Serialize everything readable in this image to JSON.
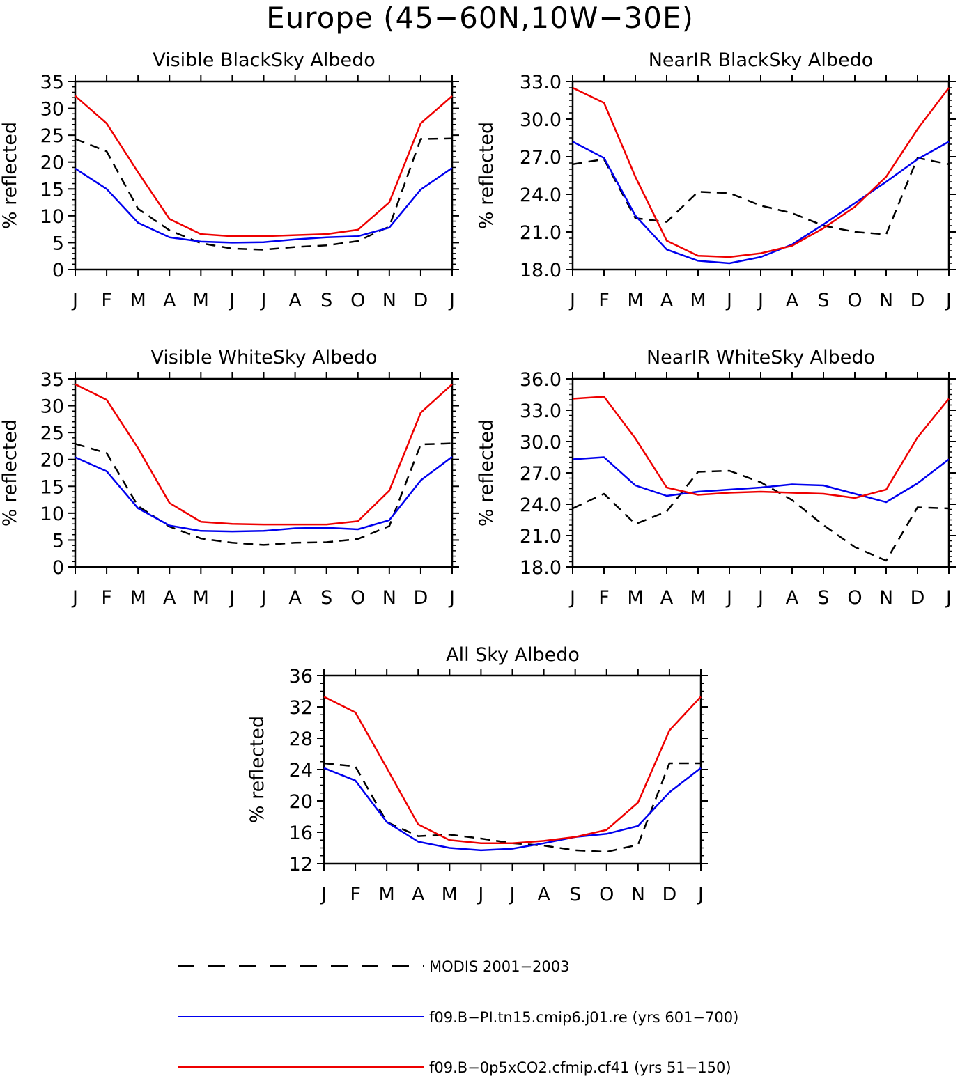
{
  "figure": {
    "title": "Europe (45−60N,10W−30E)",
    "colors": {
      "modis": "#000000",
      "pi": "#0000ee",
      "co2": "#ee0000"
    }
  },
  "legend": [
    {
      "key": "modis",
      "label": "MODIS 2001−2003",
      "style": "dashed"
    },
    {
      "key": "pi",
      "label": "f09.B−PI.tn15.cmip6.j01.re (yrs 601−700)",
      "style": "solid"
    },
    {
      "key": "co2",
      "label": "f09.B−0p5xCO2.cfmip.cf41 (yrs 51−150)",
      "style": "solid"
    }
  ],
  "chart_data": [
    {
      "type": "line",
      "title": "Visible BlackSky Albedo",
      "ylabel": "% reflected",
      "categories": [
        "J",
        "F",
        "M",
        "A",
        "M",
        "J",
        "J",
        "A",
        "S",
        "O",
        "N",
        "D",
        "J"
      ],
      "ylim": [
        0,
        35
      ],
      "yticks": [
        "0",
        "5",
        "10",
        "15",
        "20",
        "25",
        "30",
        "35"
      ],
      "series": [
        {
          "key": "modis",
          "values": [
            24.3,
            22.0,
            11.3,
            7.3,
            4.9,
            3.9,
            3.7,
            4.2,
            4.5,
            5.3,
            8.0,
            24.3,
            24.4
          ]
        },
        {
          "key": "pi",
          "values": [
            18.8,
            15.0,
            8.7,
            6.0,
            5.2,
            5.0,
            5.1,
            5.6,
            6.0,
            6.2,
            7.8,
            14.9,
            18.9
          ]
        },
        {
          "key": "co2",
          "values": [
            32.3,
            27.2,
            18.1,
            9.4,
            6.6,
            6.2,
            6.2,
            6.4,
            6.6,
            7.4,
            12.5,
            27.2,
            32.3
          ]
        }
      ]
    },
    {
      "type": "line",
      "title": "NearIR BlackSky Albedo",
      "ylabel": "% reflected",
      "categories": [
        "J",
        "F",
        "M",
        "A",
        "M",
        "J",
        "J",
        "A",
        "S",
        "O",
        "N",
        "D",
        "J"
      ],
      "ylim": [
        18,
        33
      ],
      "yticks": [
        "18.0",
        "21.0",
        "24.0",
        "27.0",
        "30.0",
        "33.0"
      ],
      "series": [
        {
          "key": "modis",
          "values": [
            26.4,
            26.8,
            22.1,
            21.8,
            24.2,
            24.1,
            23.1,
            22.5,
            21.5,
            21.0,
            20.8,
            26.9,
            26.4
          ]
        },
        {
          "key": "pi",
          "values": [
            28.2,
            26.9,
            22.3,
            19.6,
            18.7,
            18.5,
            19.0,
            20.0,
            21.6,
            23.3,
            25.0,
            26.8,
            28.2
          ]
        },
        {
          "key": "co2",
          "values": [
            32.5,
            31.3,
            25.4,
            20.3,
            19.1,
            19.0,
            19.3,
            19.9,
            21.3,
            23.0,
            25.4,
            29.2,
            32.5
          ]
        }
      ]
    },
    {
      "type": "line",
      "title": "Visible WhiteSky Albedo",
      "ylabel": "% reflected",
      "categories": [
        "J",
        "F",
        "M",
        "A",
        "M",
        "J",
        "J",
        "A",
        "S",
        "O",
        "N",
        "D",
        "J"
      ],
      "ylim": [
        0,
        35
      ],
      "yticks": [
        "0",
        "5",
        "10",
        "15",
        "20",
        "25",
        "30",
        "35"
      ],
      "series": [
        {
          "key": "modis",
          "values": [
            22.9,
            21.2,
            11.3,
            7.5,
            5.3,
            4.5,
            4.1,
            4.5,
            4.6,
            5.2,
            7.6,
            22.8,
            23.0
          ]
        },
        {
          "key": "pi",
          "values": [
            20.4,
            17.8,
            10.9,
            7.7,
            6.7,
            6.6,
            6.7,
            7.2,
            7.3,
            7.0,
            8.7,
            16.1,
            20.5
          ]
        },
        {
          "key": "co2",
          "values": [
            34.0,
            31.1,
            22.1,
            11.9,
            8.4,
            8.0,
            7.9,
            7.9,
            7.9,
            8.5,
            14.2,
            28.7,
            34.0
          ]
        }
      ]
    },
    {
      "type": "line",
      "title": "NearIR WhiteSky Albedo",
      "ylabel": "% reflected",
      "categories": [
        "J",
        "F",
        "M",
        "A",
        "M",
        "J",
        "J",
        "A",
        "S",
        "O",
        "N",
        "D",
        "J"
      ],
      "ylim": [
        18,
        36
      ],
      "yticks": [
        "18.0",
        "21.0",
        "24.0",
        "27.0",
        "30.0",
        "33.0",
        "36.0"
      ],
      "series": [
        {
          "key": "modis",
          "values": [
            23.6,
            25.0,
            22.1,
            23.3,
            27.1,
            27.2,
            26.1,
            24.4,
            22.0,
            19.9,
            18.6,
            23.7,
            23.6
          ]
        },
        {
          "key": "pi",
          "values": [
            28.3,
            28.5,
            25.8,
            24.8,
            25.2,
            25.4,
            25.6,
            25.9,
            25.8,
            25.0,
            24.2,
            26.0,
            28.3
          ]
        },
        {
          "key": "co2",
          "values": [
            34.1,
            34.3,
            30.3,
            25.6,
            24.9,
            25.1,
            25.2,
            25.1,
            25.0,
            24.6,
            25.4,
            30.4,
            34.1
          ]
        }
      ]
    },
    {
      "type": "line",
      "title": "All Sky Albedo",
      "ylabel": "% reflected",
      "categories": [
        "J",
        "F",
        "M",
        "A",
        "M",
        "J",
        "J",
        "A",
        "S",
        "O",
        "N",
        "D",
        "J"
      ],
      "ylim": [
        12,
        36
      ],
      "yticks": [
        "12",
        "16",
        "20",
        "24",
        "28",
        "32",
        "36"
      ],
      "series": [
        {
          "key": "modis",
          "values": [
            24.8,
            24.4,
            17.3,
            15.5,
            15.7,
            15.2,
            14.6,
            14.3,
            13.7,
            13.5,
            14.4,
            24.8,
            24.8
          ]
        },
        {
          "key": "pi",
          "values": [
            24.2,
            22.6,
            17.3,
            14.8,
            14.0,
            13.7,
            13.9,
            14.6,
            15.4,
            15.8,
            16.8,
            21.1,
            24.2
          ]
        },
        {
          "key": "co2",
          "values": [
            33.3,
            31.3,
            24.2,
            17.0,
            15.0,
            14.6,
            14.6,
            14.9,
            15.4,
            16.3,
            19.8,
            29.0,
            33.3
          ]
        }
      ]
    }
  ]
}
